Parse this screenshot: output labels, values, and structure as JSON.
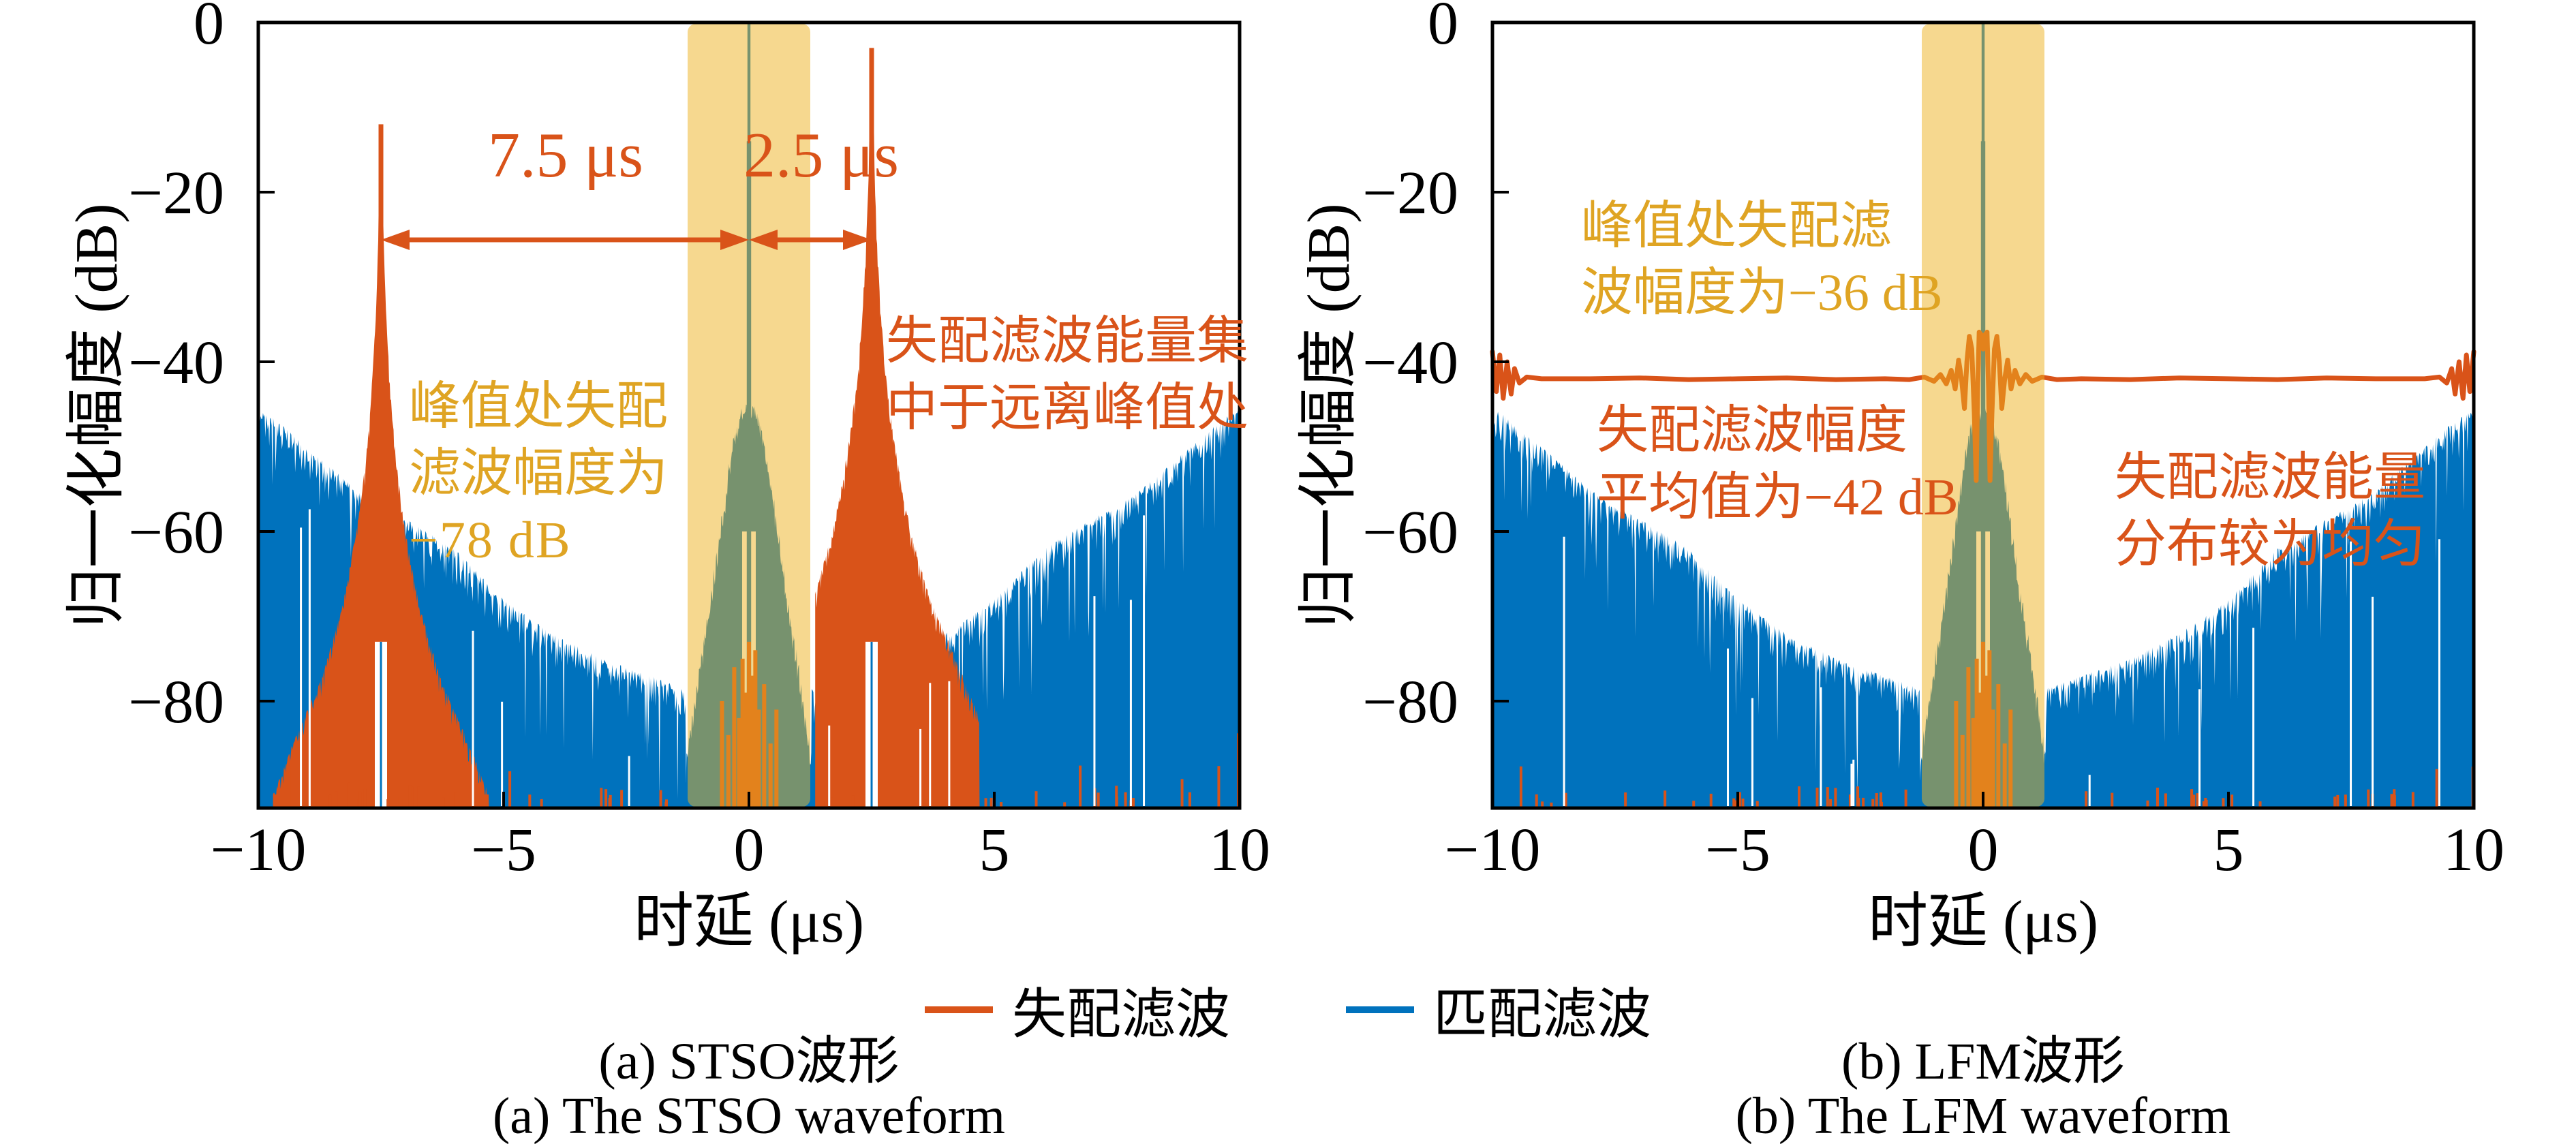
{
  "style": {
    "matched_color": "#0072BD",
    "mismatched_color": "#D95319",
    "highlight_text_color": "#DFA423",
    "band_fill": "rgba(237,177,32,0.5)",
    "axis_color": "#000000"
  },
  "legend": {
    "items": [
      {
        "label": "失配滤波",
        "color": "#D95319"
      },
      {
        "label": "匹配滤波",
        "color": "#0072BD"
      }
    ]
  },
  "captions": {
    "left": {
      "zh": "(a) STSO波形",
      "en": "(a) The STSO waveform"
    },
    "right": {
      "zh": "(b) LFM波形",
      "en": "(b) The LFM waveform"
    }
  },
  "chart_data": [
    {
      "id": "stso",
      "type": "line",
      "title": "(a) STSO波形 / The STSO waveform",
      "xlabel": "时延 (μs)",
      "ylabel": "归一化幅度 (dB)",
      "xlim": [
        -10,
        10
      ],
      "ylim": [
        -92,
        0
      ],
      "xticks": [
        -10,
        -5,
        0,
        5,
        10
      ],
      "yticks": [
        0,
        -20,
        -40,
        -60,
        -80
      ],
      "grid": false,
      "band_us": [
        -1.25,
        1.25
      ],
      "series": [
        {
          "name": "匹配滤波",
          "role": "matched",
          "color": "#0072BD",
          "mainlobe": {
            "tau_us": 0,
            "peak_db": 0
          },
          "sidelobe_envelope_db": [
            [
              1.3,
              -78.5
            ],
            [
              2,
              -77
            ],
            [
              3,
              -75
            ],
            [
              4,
              -72
            ],
            [
              5,
              -68
            ],
            [
              6,
              -62
            ],
            [
              7,
              -58.5
            ],
            [
              7.5,
              -57
            ],
            [
              8,
              -55
            ],
            [
              8.7,
              -51.5
            ],
            [
              9.3,
              -48.5
            ],
            [
              9.7,
              -46.5
            ],
            [
              10,
              -45.5
            ]
          ],
          "pedestal_envelope_db": [
            [
              0,
              -45
            ],
            [
              0.1,
              -45
            ],
            [
              0.16,
              -45.5
            ],
            [
              0.22,
              -46.5
            ],
            [
              0.3,
              -48.5
            ],
            [
              0.4,
              -52
            ],
            [
              0.5,
              -56
            ],
            [
              0.62,
              -61
            ],
            [
              0.75,
              -66.5
            ],
            [
              0.9,
              -72
            ],
            [
              1.05,
              -77.5
            ],
            [
              1.18,
              -82.5
            ],
            [
              1.28,
              -87
            ],
            [
              1.32,
              -90
            ]
          ]
        },
        {
          "name": "失配滤波",
          "role": "mismatched",
          "color": "#D95319",
          "peaks": [
            {
              "tau_us": -7.5,
              "peak_db": -12
            },
            {
              "tau_us": 2.5,
              "peak_db": -3
            }
          ],
          "level_at_mainlobe_db": -78,
          "peak_envelope_db": [
            [
              0.035,
              0
            ],
            [
              0.05,
              -12
            ],
            [
              0.08,
              -18
            ],
            [
              0.12,
              -24
            ],
            [
              0.2,
              -32
            ],
            [
              0.3,
              -39
            ],
            [
              0.45,
              -46
            ],
            [
              0.6,
              -51
            ],
            [
              0.8,
              -57
            ],
            [
              1.0,
              -61
            ],
            [
              1.2,
              -65
            ],
            [
              1.5,
              -69
            ],
            [
              1.8,
              -73
            ],
            [
              2.2,
              -79
            ]
          ]
        }
      ],
      "annotations": {
        "sep_left": {
          "label": "7.5 μs",
          "value_us": 7.5
        },
        "sep_right": {
          "label": "2.5 μs",
          "value_us": 2.5
        },
        "peak_note": {
          "lines": [
            "峰值处失配",
            "滤波幅度为",
            "−78 dB"
          ],
          "value_db": -78
        },
        "energy_note": {
          "lines": [
            "失配滤波能量集",
            "中于远离峰值处"
          ]
        }
      }
    },
    {
      "id": "lfm",
      "type": "line",
      "title": "(b) LFM波形 / The LFM waveform",
      "xlabel": "时延 (μs)",
      "ylabel": "归一化幅度 (dB)",
      "xlim": [
        -10,
        10
      ],
      "ylim": [
        -92,
        0
      ],
      "xticks": [
        -10,
        -5,
        0,
        5,
        10
      ],
      "yticks": [
        0,
        -20,
        -40,
        -60,
        -80
      ],
      "grid": false,
      "band_us": [
        -1.25,
        1.25
      ],
      "series": [
        {
          "name": "匹配滤波",
          "role": "matched",
          "color": "#0072BD",
          "mainlobe": {
            "tau_us": 0,
            "peak_db": 0
          },
          "sidelobe_envelope_db": [
            [
              1.3,
              -78.5
            ],
            [
              2,
              -77
            ],
            [
              3,
              -75
            ],
            [
              4,
              -72
            ],
            [
              5,
              -68
            ],
            [
              6,
              -62
            ],
            [
              7,
              -58.5
            ],
            [
              7.5,
              -57
            ],
            [
              8,
              -55
            ],
            [
              8.7,
              -51.5
            ],
            [
              9.3,
              -48.5
            ],
            [
              9.7,
              -46.5
            ],
            [
              10,
              -45.5
            ]
          ],
          "pedestal_envelope_db": [
            [
              0,
              -45
            ],
            [
              0.1,
              -45
            ],
            [
              0.16,
              -45.5
            ],
            [
              0.22,
              -46.5
            ],
            [
              0.3,
              -48.5
            ],
            [
              0.4,
              -52
            ],
            [
              0.5,
              -56
            ],
            [
              0.62,
              -61
            ],
            [
              0.75,
              -66.5
            ],
            [
              0.9,
              -72
            ],
            [
              1.05,
              -77.5
            ],
            [
              1.18,
              -82.5
            ],
            [
              1.28,
              -87
            ],
            [
              1.32,
              -90
            ]
          ]
        },
        {
          "name": "失配滤波",
          "role": "mismatched",
          "color": "#D95319",
          "mean_level_db": -42,
          "peak_at_mainlobe_db": -36,
          "profile_db": [
            [
              0,
              -38.5
            ],
            [
              0.04,
              -36.8
            ],
            [
              0.08,
              -36.5
            ],
            [
              0.11,
              -43
            ],
            [
              0.14,
              -54
            ],
            [
              0.18,
              -46
            ],
            [
              0.23,
              -38.5
            ],
            [
              0.28,
              -37
            ],
            [
              0.33,
              -40
            ],
            [
              0.38,
              -45.5
            ],
            [
              0.44,
              -42
            ],
            [
              0.5,
              -39.8
            ],
            [
              0.57,
              -43.2
            ],
            [
              0.65,
              -41
            ],
            [
              0.75,
              -42.6
            ],
            [
              0.87,
              -41.5
            ],
            [
              1.0,
              -42.3
            ],
            [
              1.2,
              -41.8
            ],
            [
              1.5,
              -42.1
            ],
            [
              2,
              -42
            ],
            [
              3,
              -42.1
            ],
            [
              4,
              -41.9
            ],
            [
              5,
              -42
            ],
            [
              6,
              -42.1
            ],
            [
              7,
              -41.9
            ],
            [
              8,
              -42
            ],
            [
              9,
              -42
            ],
            [
              9.3,
              -41.8
            ],
            [
              9.45,
              -42.5
            ],
            [
              9.55,
              -40.8
            ],
            [
              9.62,
              -43.8
            ],
            [
              9.7,
              -40
            ],
            [
              9.78,
              -44.3
            ],
            [
              9.85,
              -39.2
            ],
            [
              9.92,
              -43.5
            ],
            [
              10,
              -38.8
            ]
          ]
        }
      ],
      "annotations": {
        "peak_note": {
          "lines": [
            "峰值处失配滤",
            "波幅度为−36 dB"
          ],
          "value_db": -36
        },
        "avg_note": {
          "lines": [
            "失配滤波幅度",
            "平均值为−42 dB"
          ],
          "value_db": -42
        },
        "uniform_note": {
          "lines": [
            "失配滤波能量",
            "分布较为均匀"
          ]
        }
      }
    }
  ]
}
